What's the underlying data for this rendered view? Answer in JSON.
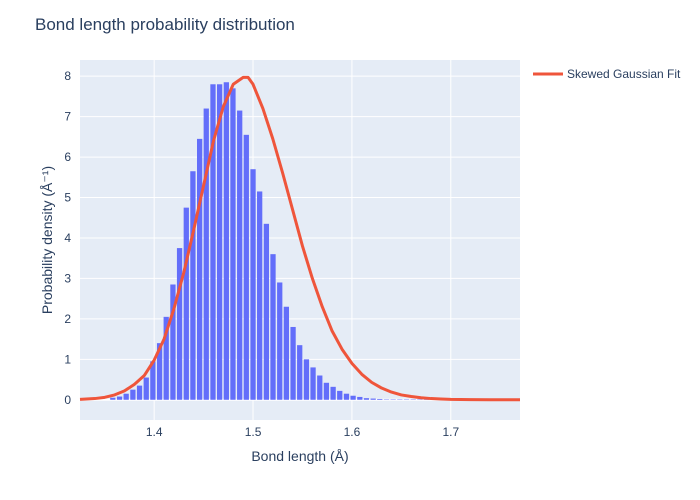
{
  "chart_data": {
    "type": "bar",
    "title": "Bond length probability distribution",
    "xlabel": "Bond length (Å)",
    "ylabel": "Probability density (Å⁻¹)",
    "xlim": [
      1.325,
      1.77
    ],
    "ylim": [
      -0.5,
      8.4
    ],
    "xticks": [
      1.4,
      1.5,
      1.6,
      1.7
    ],
    "yticks": [
      0,
      1,
      2,
      3,
      4,
      5,
      6,
      7,
      8
    ],
    "grid": true,
    "legend_position": "top-right",
    "background_color": "#e5ecf6",
    "bar_color": "#636efa",
    "line_color": "#ef553b",
    "histogram": {
      "bin_width": 0.00675,
      "bin_centers": [
        1.3582,
        1.365,
        1.3717,
        1.3785,
        1.3852,
        1.392,
        1.3987,
        1.4055,
        1.4122,
        1.419,
        1.4257,
        1.4325,
        1.4392,
        1.446,
        1.4527,
        1.4595,
        1.4662,
        1.473,
        1.4797,
        1.4865,
        1.4932,
        1.5,
        1.5067,
        1.5135,
        1.5202,
        1.527,
        1.5337,
        1.5405,
        1.5472,
        1.554,
        1.5607,
        1.5675,
        1.5742,
        1.581,
        1.5877,
        1.5945,
        1.6012,
        1.608,
        1.6147,
        1.6215,
        1.6282,
        1.635,
        1.6417,
        1.6485,
        1.6552,
        1.662,
        1.6687,
        1.6755
      ],
      "values": [
        0.05,
        0.08,
        0.15,
        0.25,
        0.35,
        0.55,
        0.95,
        1.4,
        2.05,
        2.85,
        3.75,
        4.75,
        5.65,
        6.45,
        7.2,
        7.8,
        7.8,
        7.85,
        7.7,
        7.15,
        6.55,
        5.7,
        5.15,
        4.35,
        3.6,
        2.9,
        2.3,
        1.8,
        1.35,
        1.0,
        0.8,
        0.6,
        0.42,
        0.32,
        0.22,
        0.15,
        0.1,
        0.07,
        0.04,
        0.03,
        0.02,
        0.01,
        0.01,
        0.01,
        0.01,
        0.01,
        0.01,
        0.01
      ]
    },
    "series": [
      {
        "name": "Skewed Gaussian Fit",
        "x": [
          1.325,
          1.34,
          1.35,
          1.36,
          1.37,
          1.38,
          1.39,
          1.4,
          1.41,
          1.42,
          1.43,
          1.44,
          1.45,
          1.46,
          1.47,
          1.48,
          1.49,
          1.495,
          1.5,
          1.51,
          1.52,
          1.53,
          1.54,
          1.55,
          1.56,
          1.57,
          1.58,
          1.59,
          1.6,
          1.61,
          1.62,
          1.63,
          1.64,
          1.65,
          1.66,
          1.67,
          1.68,
          1.69,
          1.7,
          1.72,
          1.74,
          1.77
        ],
        "y": [
          0.01,
          0.03,
          0.06,
          0.12,
          0.22,
          0.38,
          0.6,
          0.98,
          1.5,
          2.25,
          3.15,
          4.2,
          5.3,
          6.4,
          7.25,
          7.8,
          7.97,
          7.97,
          7.8,
          7.2,
          6.45,
          5.6,
          4.7,
          3.8,
          3.0,
          2.3,
          1.7,
          1.25,
          0.9,
          0.63,
          0.43,
          0.29,
          0.19,
          0.12,
          0.08,
          0.05,
          0.03,
          0.02,
          0.01,
          0.005,
          0.002,
          0.001
        ]
      }
    ]
  }
}
